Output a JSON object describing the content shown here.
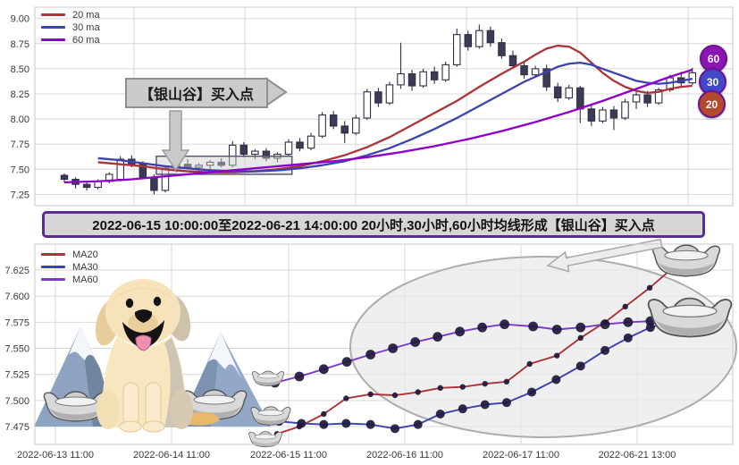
{
  "title_bar": {
    "text": "2022-06-15 10:00:00至2022-06-21 14:00:00 20小时,30小时,60小时均线形成【银山谷】买入点"
  },
  "colors": {
    "ma20": "#ac3339",
    "ma30": "#3d43ad",
    "ma60_top": "#8e00c8",
    "ma60_bottom": "#7a3bc8",
    "marker": "#20183c",
    "grid": "#d8d8d8",
    "frame": "#c9c9c9",
    "tick_text": "#3a3a3a",
    "candle_up_fill": "#ffffff",
    "candle_down_fill": "#3b3b55",
    "candle_stroke": "#2f2f45",
    "badge_60": "#8d15b5",
    "badge_30": "#3f49c9",
    "badge_20": "#b34a2d",
    "badge_ring": "#6b1390",
    "title_bg": "#d6d6d6",
    "title_border": "#5b2b8e",
    "callout_bg": "#cbcbcb",
    "callout_border": "#8f8f8f",
    "box_fill": "rgba(205,205,205,0.45)",
    "box_stroke": "#50506a",
    "ellipse_fill": "rgba(233,233,233,0.75)",
    "ellipse_stroke": "#adadad",
    "arrow_fill": "#ededed",
    "arrow_stroke": "#a8a8a8"
  },
  "chart_data": [
    {
      "id": "hourly-candlestick",
      "type": "candlestick",
      "ylim": [
        7.14,
        9.11
      ],
      "y_ticks": {
        "labels": [
          "9.00",
          "8.75",
          "8.50",
          "8.25",
          "8.00",
          "7.75",
          "7.50",
          "7.25"
        ],
        "values": [
          9.0,
          8.75,
          8.5,
          8.25,
          8.0,
          7.75,
          7.5,
          7.25
        ]
      },
      "grid": true,
      "legend": [
        {
          "label": "20 ma",
          "color_key": "ma20"
        },
        {
          "label": "30 ma",
          "color_key": "ma30"
        },
        {
          "label": "60 ma",
          "color_key": "ma60_top"
        }
      ],
      "candles_ohlc": [
        [
          7.44,
          7.46,
          7.37,
          7.4
        ],
        [
          7.4,
          7.42,
          7.31,
          7.35
        ],
        [
          7.35,
          7.38,
          7.29,
          7.32
        ],
        [
          7.32,
          7.4,
          7.3,
          7.38
        ],
        [
          7.38,
          7.47,
          7.36,
          7.45
        ],
        [
          7.4,
          7.63,
          7.38,
          7.6
        ],
        [
          7.6,
          7.64,
          7.52,
          7.55
        ],
        [
          7.55,
          7.58,
          7.4,
          7.42
        ],
        [
          7.42,
          7.45,
          7.25,
          7.29
        ],
        [
          7.29,
          7.53,
          7.27,
          7.51
        ],
        [
          7.51,
          7.58,
          7.47,
          7.55
        ],
        [
          7.55,
          7.6,
          7.5,
          7.52
        ],
        [
          7.52,
          7.56,
          7.48,
          7.54
        ],
        [
          7.54,
          7.59,
          7.5,
          7.57
        ],
        [
          7.57,
          7.61,
          7.52,
          7.54
        ],
        [
          7.54,
          7.78,
          7.52,
          7.74
        ],
        [
          7.74,
          7.77,
          7.62,
          7.65
        ],
        [
          7.65,
          7.7,
          7.6,
          7.68
        ],
        [
          7.68,
          7.71,
          7.58,
          7.61
        ],
        [
          7.61,
          7.67,
          7.57,
          7.65
        ],
        [
          7.65,
          7.8,
          7.63,
          7.77
        ],
        [
          7.77,
          7.81,
          7.68,
          7.71
        ],
        [
          7.71,
          7.86,
          7.69,
          7.83
        ],
        [
          7.83,
          8.07,
          7.81,
          8.04
        ],
        [
          8.04,
          8.08,
          7.9,
          7.93
        ],
        [
          7.93,
          7.98,
          7.76,
          7.86
        ],
        [
          7.86,
          8.04,
          7.84,
          8.01
        ],
        [
          8.01,
          8.3,
          7.99,
          8.27
        ],
        [
          8.27,
          8.31,
          8.12,
          8.16
        ],
        [
          8.16,
          8.37,
          8.14,
          8.34
        ],
        [
          8.34,
          8.76,
          8.3,
          8.45
        ],
        [
          8.45,
          8.49,
          8.28,
          8.33
        ],
        [
          8.33,
          8.5,
          8.31,
          8.47
        ],
        [
          8.47,
          8.52,
          8.35,
          8.39
        ],
        [
          8.39,
          8.57,
          8.37,
          8.54
        ],
        [
          8.54,
          8.9,
          8.52,
          8.84
        ],
        [
          8.84,
          8.88,
          8.68,
          8.72
        ],
        [
          8.72,
          8.94,
          8.7,
          8.88
        ],
        [
          8.88,
          8.92,
          8.72,
          8.76
        ],
        [
          8.76,
          8.8,
          8.6,
          8.63
        ],
        [
          8.63,
          8.68,
          8.5,
          8.53
        ],
        [
          8.53,
          8.58,
          8.4,
          8.44
        ],
        [
          8.44,
          8.53,
          8.41,
          8.5
        ],
        [
          8.5,
          8.54,
          8.28,
          8.32
        ],
        [
          8.32,
          8.36,
          8.17,
          8.21
        ],
        [
          8.21,
          8.34,
          8.19,
          8.31
        ],
        [
          8.31,
          8.33,
          7.96,
          8.1
        ],
        [
          8.1,
          8.14,
          7.93,
          7.98
        ],
        [
          7.98,
          8.12,
          7.96,
          8.09
        ],
        [
          8.09,
          8.13,
          7.89,
          8.01
        ],
        [
          8.01,
          8.2,
          7.99,
          8.17
        ],
        [
          8.17,
          8.27,
          8.1,
          8.24
        ],
        [
          8.24,
          8.28,
          8.12,
          8.16
        ],
        [
          8.16,
          8.31,
          8.14,
          8.29
        ],
        [
          8.29,
          8.44,
          8.27,
          8.41
        ],
        [
          8.41,
          8.47,
          8.33,
          8.36
        ],
        [
          8.36,
          8.51,
          8.34,
          8.46
        ]
      ],
      "series": [
        {
          "name": "20 ma",
          "color_key": "ma20",
          "points": [
            [
              3,
              7.57
            ],
            [
              5,
              7.55
            ],
            [
              7,
              7.53
            ],
            [
              9,
              7.5
            ],
            [
              11,
              7.48
            ],
            [
              13,
              7.47
            ],
            [
              15,
              7.47
            ],
            [
              17,
              7.48
            ],
            [
              19,
              7.5
            ],
            [
              21,
              7.53
            ],
            [
              23,
              7.58
            ],
            [
              25,
              7.64
            ],
            [
              27,
              7.72
            ],
            [
              29,
              7.82
            ],
            [
              31,
              7.94
            ],
            [
              33,
              8.06
            ],
            [
              35,
              8.18
            ],
            [
              37,
              8.32
            ],
            [
              39,
              8.45
            ],
            [
              41,
              8.57
            ],
            [
              42,
              8.64
            ],
            [
              43,
              8.7
            ],
            [
              44,
              8.73
            ],
            [
              45,
              8.72
            ],
            [
              46,
              8.66
            ],
            [
              47,
              8.56
            ],
            [
              48,
              8.46
            ],
            [
              49,
              8.38
            ],
            [
              50,
              8.32
            ],
            [
              51,
              8.28
            ],
            [
              52,
              8.26
            ],
            [
              53,
              8.27
            ],
            [
              54,
              8.3
            ],
            [
              55,
              8.32
            ],
            [
              56,
              8.33
            ]
          ]
        },
        {
          "name": "30 ma",
          "color_key": "ma30",
          "points": [
            [
              3,
              7.61
            ],
            [
              5,
              7.59
            ],
            [
              7,
              7.56
            ],
            [
              9,
              7.53
            ],
            [
              11,
              7.51
            ],
            [
              13,
              7.49
            ],
            [
              15,
              7.48
            ],
            [
              17,
              7.48
            ],
            [
              19,
              7.49
            ],
            [
              21,
              7.51
            ],
            [
              23,
              7.54
            ],
            [
              25,
              7.58
            ],
            [
              27,
              7.64
            ],
            [
              29,
              7.71
            ],
            [
              31,
              7.8
            ],
            [
              33,
              7.9
            ],
            [
              35,
              8.01
            ],
            [
              37,
              8.13
            ],
            [
              39,
              8.25
            ],
            [
              41,
              8.37
            ],
            [
              43,
              8.47
            ],
            [
              44,
              8.52
            ],
            [
              45,
              8.55
            ],
            [
              46,
              8.56
            ],
            [
              47,
              8.54
            ],
            [
              48,
              8.5
            ],
            [
              49,
              8.46
            ],
            [
              50,
              8.42
            ],
            [
              51,
              8.38
            ],
            [
              52,
              8.36
            ],
            [
              53,
              8.35
            ],
            [
              54,
              8.36
            ],
            [
              55,
              8.38
            ],
            [
              56,
              8.4
            ]
          ]
        },
        {
          "name": "60 ma",
          "color_key": "ma60_top",
          "points": [
            [
              0,
              7.37
            ],
            [
              3,
              7.38
            ],
            [
              6,
              7.4
            ],
            [
              9,
              7.43
            ],
            [
              12,
              7.46
            ],
            [
              15,
              7.49
            ],
            [
              18,
              7.52
            ],
            [
              21,
              7.55
            ],
            [
              24,
              7.58
            ],
            [
              27,
              7.62
            ],
            [
              30,
              7.67
            ],
            [
              33,
              7.73
            ],
            [
              36,
              7.8
            ],
            [
              39,
              7.88
            ],
            [
              42,
              7.97
            ],
            [
              45,
              8.07
            ],
            [
              48,
              8.18
            ],
            [
              50,
              8.26
            ],
            [
              52,
              8.34
            ],
            [
              54,
              8.42
            ],
            [
              56,
              8.49
            ]
          ]
        }
      ],
      "annotations": {
        "buy_callout_text": "【银山谷】买入点",
        "highlight_box": {
          "idx0": 8.6,
          "idx1": 19.9,
          "price_low": 7.45,
          "price_high": 7.63
        },
        "ma_badges": [
          {
            "label": "60",
            "color_key": "badge_60"
          },
          {
            "label": "30",
            "color_key": "badge_30"
          },
          {
            "label": "20",
            "color_key": "badge_20"
          }
        ]
      }
    },
    {
      "id": "ma-detail-lines",
      "type": "line",
      "ylim": [
        7.458,
        7.65
      ],
      "y_ticks": {
        "labels": [
          "7.625",
          "7.600",
          "7.575",
          "7.550",
          "7.525",
          "7.500",
          "7.475"
        ],
        "values": [
          7.625,
          7.6,
          7.575,
          7.55,
          7.525,
          7.5,
          7.475
        ]
      },
      "x_ticks": [
        "2022-06-13 11:00",
        "2022-06-14 11:00",
        "2022-06-15 11:00",
        "2022-06-16 11:00",
        "2022-06-17 11:00",
        "2022-06-21 13:00"
      ],
      "grid": true,
      "legend": [
        {
          "label": "MA20",
          "color_key": "ma20"
        },
        {
          "label": "MA30",
          "color_key": "ma30"
        },
        {
          "label": "MA60",
          "color_key": "ma60_bottom"
        }
      ],
      "series": [
        {
          "name": "MA20",
          "color_key": "ma20",
          "marker_r": 3.2,
          "points": [
            [
              0.347,
              7.468
            ],
            [
              0.379,
              7.475
            ],
            [
              0.414,
              7.487
            ],
            [
              0.446,
              7.502
            ],
            [
              0.481,
              7.506
            ],
            [
              0.516,
              7.505
            ],
            [
              0.549,
              7.508
            ],
            [
              0.581,
              7.512
            ],
            [
              0.613,
              7.513
            ],
            [
              0.645,
              7.516
            ],
            [
              0.676,
              7.518
            ],
            [
              0.709,
              7.535
            ],
            [
              0.748,
              7.543
            ],
            [
              0.782,
              7.56
            ],
            [
              0.817,
              7.575
            ],
            [
              0.846,
              7.59
            ],
            [
              0.881,
              7.608
            ],
            [
              0.914,
              7.627
            ],
            [
              0.936,
              7.638
            ]
          ]
        },
        {
          "name": "MA30",
          "color_key": "ma30",
          "marker_r": 5.0,
          "points": [
            [
              0.35,
              7.48
            ],
            [
              0.382,
              7.478
            ],
            [
              0.414,
              7.477
            ],
            [
              0.446,
              7.478
            ],
            [
              0.481,
              7.477
            ],
            [
              0.516,
              7.473
            ],
            [
              0.549,
              7.477
            ],
            [
              0.581,
              7.487
            ],
            [
              0.613,
              7.492
            ],
            [
              0.645,
              7.496
            ],
            [
              0.676,
              7.498
            ],
            [
              0.712,
              7.508
            ],
            [
              0.747,
              7.52
            ],
            [
              0.782,
              7.533
            ],
            [
              0.817,
              7.548
            ],
            [
              0.85,
              7.56
            ],
            [
              0.882,
              7.57
            ],
            [
              0.914,
              7.576
            ],
            [
              0.933,
              7.578
            ]
          ]
        },
        {
          "name": "MA60",
          "color_key": "ma60_bottom",
          "marker_r": 5.4,
          "points": [
            [
              0.344,
              7.517
            ],
            [
              0.379,
              7.523
            ],
            [
              0.414,
              7.53
            ],
            [
              0.447,
              7.537
            ],
            [
              0.481,
              7.544
            ],
            [
              0.513,
              7.55
            ],
            [
              0.545,
              7.556
            ],
            [
              0.577,
              7.561
            ],
            [
              0.609,
              7.566
            ],
            [
              0.641,
              7.57
            ],
            [
              0.673,
              7.573
            ],
            [
              0.714,
              7.571
            ],
            [
              0.748,
              7.568
            ],
            [
              0.782,
              7.57
            ],
            [
              0.817,
              7.573
            ],
            [
              0.85,
              7.575
            ],
            [
              0.882,
              7.576
            ],
            [
              0.914,
              7.577
            ],
            [
              0.936,
              7.578
            ]
          ]
        }
      ]
    }
  ]
}
